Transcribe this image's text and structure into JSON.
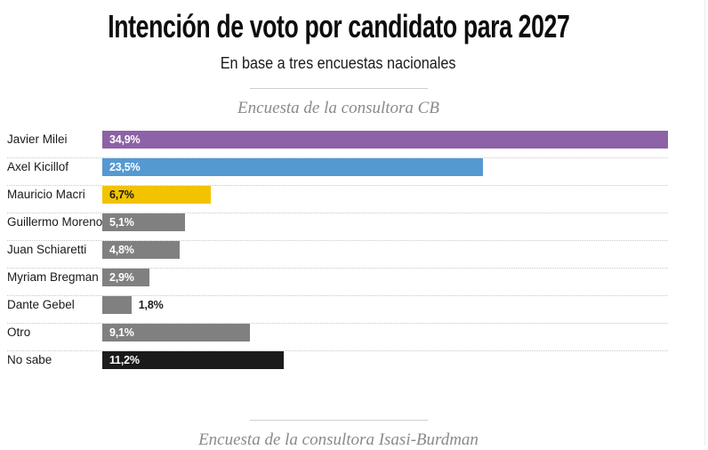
{
  "page": {
    "title": "Intención de voto por candidato para 2027",
    "subtitle": "En base a tres encuestas nacionales"
  },
  "sections": {
    "first_heading": "Encuesta de la consultora CB",
    "second_heading": "Encuesta de la consultora Isasi-Burdman"
  },
  "colors": {
    "purple": "#8d62a6",
    "blue": "#5599d2",
    "yellow": "#f3c300",
    "gray": "#808080",
    "black": "#1b1b1b",
    "white_label": "#ffffff",
    "dark_label": "#1a1a1a",
    "divider": "#cfcfcf",
    "dotted_separator": "#c8c8c8",
    "heading_gray": "#8a8a8a"
  },
  "chart_data": {
    "type": "bar",
    "orientation": "horizontal",
    "title": "Encuesta de la consultora CB",
    "xlabel": "",
    "ylabel": "",
    "xlim": [
      0,
      34.9
    ],
    "grid": false,
    "row_separator": "dotted",
    "categories": [
      "Javier Milei",
      "Axel Kicillof",
      "Mauricio Macri",
      "Guillermo Moreno",
      "Juan Schiaretti",
      "Myriam Bregman",
      "Dante Gebel",
      "Otro",
      "No sabe"
    ],
    "values": [
      34.9,
      23.5,
      6.7,
      5.1,
      4.8,
      2.9,
      1.8,
      9.1,
      11.2
    ],
    "value_labels": [
      "34,9%",
      "23,5%",
      "6,7%",
      "5,1%",
      "4,8%",
      "2,9%",
      "1,8%",
      "9,1%",
      "11,2%"
    ],
    "bars": [
      {
        "category": "Javier Milei",
        "value": 34.9,
        "label": "34,9%",
        "color": "#8d62a6",
        "label_color": "#ffffff",
        "label_placement": "inside"
      },
      {
        "category": "Axel Kicillof",
        "value": 23.5,
        "label": "23,5%",
        "color": "#5599d2",
        "label_color": "#ffffff",
        "label_placement": "inside"
      },
      {
        "category": "Mauricio Macri",
        "value": 6.7,
        "label": "6,7%",
        "color": "#f3c300",
        "label_color": "#1a1a1a",
        "label_placement": "inside"
      },
      {
        "category": "Guillermo Moreno",
        "value": 5.1,
        "label": "5,1%",
        "color": "#808080",
        "label_color": "#ffffff",
        "label_placement": "inside"
      },
      {
        "category": "Juan Schiaretti",
        "value": 4.8,
        "label": "4,8%",
        "color": "#808080",
        "label_color": "#ffffff",
        "label_placement": "inside"
      },
      {
        "category": "Myriam Bregman",
        "value": 2.9,
        "label": "2,9%",
        "color": "#808080",
        "label_color": "#ffffff",
        "label_placement": "inside"
      },
      {
        "category": "Dante Gebel",
        "value": 1.8,
        "label": "1,8%",
        "color": "#808080",
        "label_color": "#1a1a1a",
        "label_placement": "outside"
      },
      {
        "category": "Otro",
        "value": 9.1,
        "label": "9,1%",
        "color": "#808080",
        "label_color": "#ffffff",
        "label_placement": "inside"
      },
      {
        "category": "No sabe",
        "value": 11.2,
        "label": "11,2%",
        "color": "#1b1b1b",
        "label_color": "#ffffff",
        "label_placement": "inside"
      }
    ]
  }
}
